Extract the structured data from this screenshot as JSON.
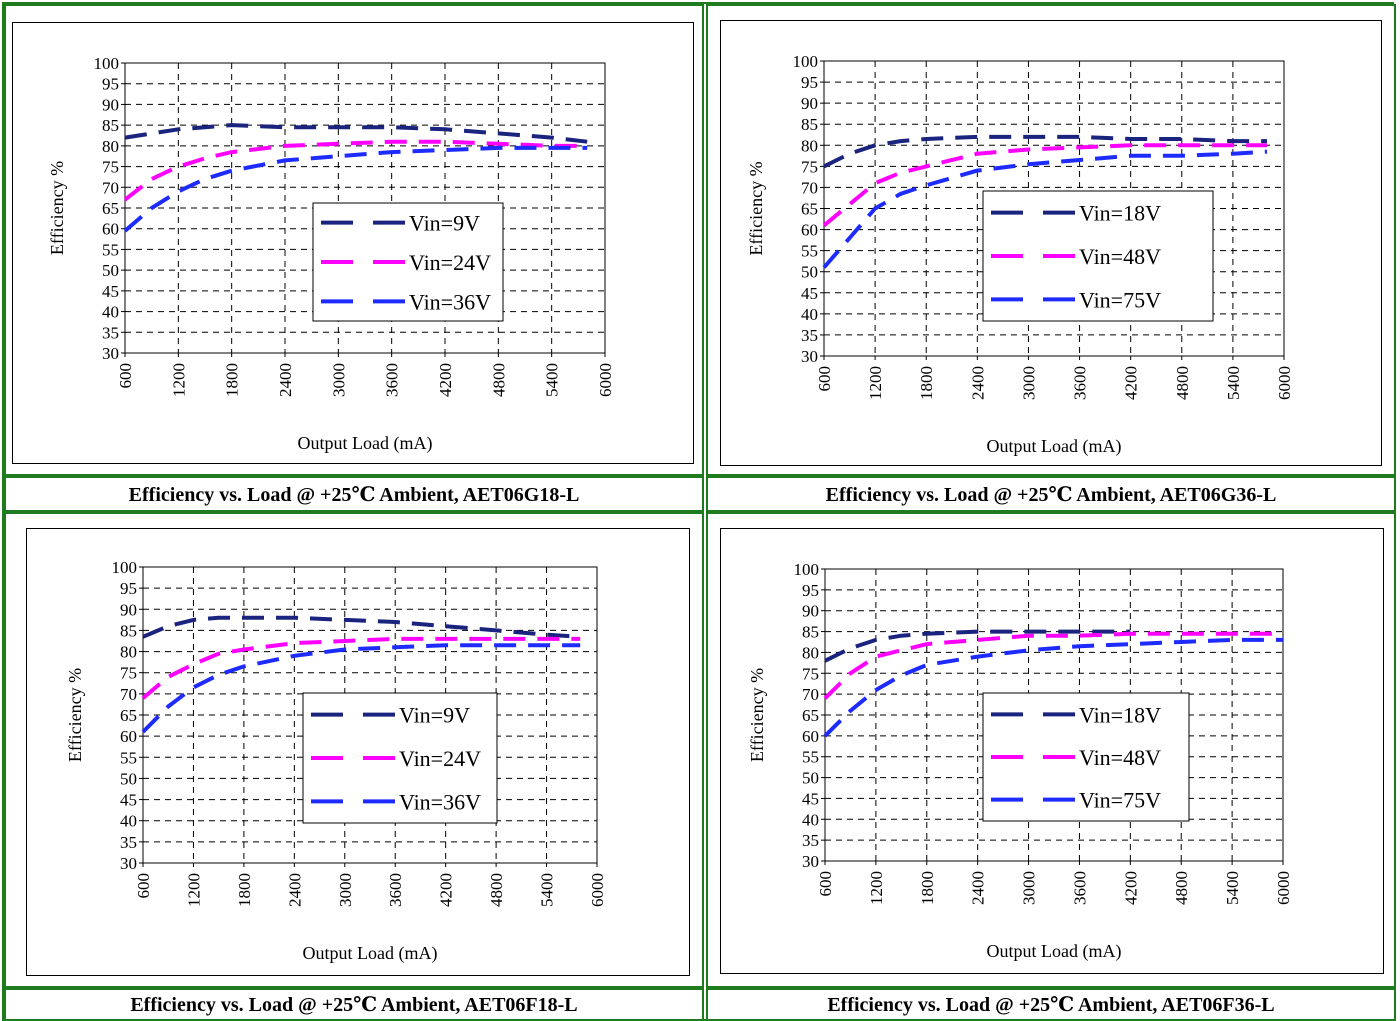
{
  "colors": {
    "border_green": "#1e7b1e",
    "vin_low": "#1a237e",
    "vin_mid": "#ff00ff",
    "vin_high": "#1e2bff"
  },
  "chart_data": [
    {
      "type": "line",
      "caption": "Efficiency vs. Load @ +25℃ Ambient, AET06G18-L",
      "xlabel": "Output Load (mA)",
      "ylabel": "Efficiency %",
      "xlim": [
        600,
        6000
      ],
      "ylim": [
        30,
        100
      ],
      "xticks": [
        "600",
        "1200",
        "1800",
        "2400",
        "3000",
        "3600",
        "4200",
        "4800",
        "5400",
        "6000"
      ],
      "yticks": [
        "30",
        "35",
        "40",
        "45",
        "50",
        "55",
        "60",
        "65",
        "70",
        "75",
        "80",
        "85",
        "90",
        "95",
        "100"
      ],
      "grid": true,
      "legend_position": "center-right",
      "series": [
        {
          "name": "Vin=9V",
          "x": [
            600,
            1200,
            1800,
            2400,
            3000,
            3600,
            4200,
            4800,
            5400,
            5800
          ],
          "values": [
            82,
            84,
            85,
            84.5,
            84.5,
            84.5,
            84,
            83,
            82,
            81
          ]
        },
        {
          "name": "Vin=24V",
          "x": [
            600,
            900,
            1200,
            1500,
            1800,
            2400,
            3000,
            3600,
            4200,
            4800,
            5400,
            5800
          ],
          "values": [
            67,
            72,
            75,
            77,
            78.5,
            80,
            80.5,
            81,
            81,
            80.5,
            80,
            80
          ]
        },
        {
          "name": "Vin=36V",
          "x": [
            600,
            900,
            1200,
            1500,
            1800,
            2400,
            3000,
            3600,
            4200,
            4800,
            5400,
            5800
          ],
          "values": [
            59.5,
            65,
            69,
            72,
            74,
            76.5,
            77.5,
            78.5,
            79,
            79.5,
            79.5,
            79.5
          ]
        }
      ]
    },
    {
      "type": "line",
      "caption": "Efficiency vs. Load @ +25℃ Ambient, AET06G36-L",
      "xlabel": "Output Load (mA)",
      "ylabel": "Efficiency %",
      "xlim": [
        600,
        6000
      ],
      "ylim": [
        30,
        100
      ],
      "xticks": [
        "600",
        "1200",
        "1800",
        "2400",
        "3000",
        "3600",
        "4200",
        "4800",
        "5400",
        "6000"
      ],
      "yticks": [
        "30",
        "35",
        "40",
        "45",
        "50",
        "55",
        "60",
        "65",
        "70",
        "75",
        "80",
        "85",
        "90",
        "95",
        "100"
      ],
      "grid": true,
      "legend_position": "center-right",
      "series": [
        {
          "name": "Vin=18V",
          "x": [
            600,
            900,
            1200,
            1500,
            1800,
            2400,
            3000,
            3600,
            4200,
            4800,
            5400,
            5800
          ],
          "values": [
            75,
            78,
            80,
            81,
            81.5,
            82,
            82,
            82,
            81.5,
            81.5,
            81,
            81
          ]
        },
        {
          "name": "Vin=48V",
          "x": [
            600,
            900,
            1200,
            1500,
            1800,
            2400,
            3000,
            3600,
            4200,
            4800,
            5400,
            5800
          ],
          "values": [
            61,
            66,
            71,
            73.5,
            75,
            78,
            79,
            79.5,
            80,
            80,
            80,
            80
          ]
        },
        {
          "name": "Vin=75V",
          "x": [
            600,
            900,
            1200,
            1500,
            1800,
            2400,
            3000,
            3600,
            4200,
            4800,
            5400,
            5800
          ],
          "values": [
            51,
            58,
            65,
            68.5,
            70.5,
            74,
            75.5,
            76.5,
            77.5,
            77.5,
            78,
            78.5
          ]
        }
      ]
    },
    {
      "type": "line",
      "caption": "Efficiency vs. Load @ +25℃ Ambient, AET06F18-L",
      "xlabel": "Output Load (mA)",
      "ylabel": "Efficiency %",
      "xlim": [
        600,
        6000
      ],
      "ylim": [
        30,
        100
      ],
      "xticks": [
        "600",
        "1200",
        "1800",
        "2400",
        "3000",
        "3600",
        "4200",
        "4800",
        "5400",
        "6000"
      ],
      "yticks": [
        "30",
        "35",
        "40",
        "45",
        "50",
        "55",
        "60",
        "65",
        "70",
        "75",
        "80",
        "85",
        "90",
        "95",
        "100"
      ],
      "grid": true,
      "legend_position": "center-right",
      "series": [
        {
          "name": "Vin=9V",
          "x": [
            600,
            900,
            1200,
            1500,
            1800,
            2400,
            3000,
            3600,
            4200,
            4800,
            5400,
            5800
          ],
          "values": [
            83.5,
            86,
            87.5,
            88,
            88,
            88,
            87.5,
            87,
            86,
            85,
            84,
            83.5
          ]
        },
        {
          "name": "Vin=24V",
          "x": [
            600,
            900,
            1200,
            1500,
            1800,
            2400,
            3000,
            3600,
            4200,
            4800,
            5400,
            5800
          ],
          "values": [
            69,
            74,
            77,
            79.5,
            80.5,
            82,
            82.5,
            83,
            83,
            83,
            83,
            83
          ]
        },
        {
          "name": "Vin=36V",
          "x": [
            600,
            900,
            1200,
            1500,
            1800,
            2400,
            3000,
            3600,
            4200,
            4800,
            5400,
            5800
          ],
          "values": [
            61,
            67,
            71.5,
            74.5,
            76.5,
            79,
            80.5,
            81,
            81.5,
            81.5,
            81.5,
            81.5
          ]
        }
      ]
    },
    {
      "type": "line",
      "caption": "Efficiency vs. Load @ +25℃ Ambient, AET06F36-L",
      "xlabel": "Output Load (mA)",
      "ylabel": "Efficiency %",
      "xlim": [
        600,
        6000
      ],
      "ylim": [
        30,
        100
      ],
      "xticks": [
        "600",
        "1200",
        "1800",
        "2400",
        "3000",
        "3600",
        "4200",
        "4800",
        "5400",
        "6000"
      ],
      "yticks": [
        "30",
        "35",
        "40",
        "45",
        "50",
        "55",
        "60",
        "65",
        "70",
        "75",
        "80",
        "85",
        "90",
        "95",
        "100"
      ],
      "grid": true,
      "legend_position": "center-right",
      "series": [
        {
          "name": "Vin=18V",
          "x": [
            600,
            900,
            1200,
            1500,
            1800,
            2400,
            3000,
            3600,
            4200
          ],
          "values": [
            78,
            81,
            83,
            84,
            84.5,
            85,
            85,
            85,
            85
          ]
        },
        {
          "name": "Vin=48V",
          "x": [
            600,
            900,
            1200,
            1500,
            1800,
            2400,
            3000,
            3600,
            4200,
            4800,
            5400,
            6000
          ],
          "values": [
            69,
            75,
            79,
            80.5,
            82,
            83,
            84,
            84,
            84.5,
            84.5,
            84.5,
            84.5
          ]
        },
        {
          "name": "Vin=75V",
          "x": [
            600,
            900,
            1200,
            1500,
            1800,
            2400,
            3000,
            3600,
            4200,
            4800,
            5400,
            6000
          ],
          "values": [
            60,
            66,
            71,
            74.5,
            77,
            79,
            80.5,
            81.5,
            82,
            82.5,
            83,
            83
          ]
        }
      ]
    }
  ]
}
